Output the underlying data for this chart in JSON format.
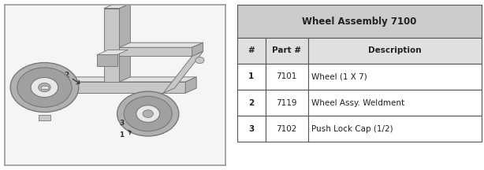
{
  "title": "Wheel Assembly 7100",
  "columns": [
    "#",
    "Part #",
    "Description"
  ],
  "rows": [
    [
      "1",
      "7101",
      "Wheel (1 X 7)"
    ],
    [
      "2",
      "7119",
      "Wheel Assy. Weldment"
    ],
    [
      "3",
      "7102",
      "Push Lock Cap (1/2)"
    ]
  ],
  "title_bg": "#cccccc",
  "header_bg": "#e0e0e0",
  "row_bg": "#ffffff",
  "border_color": "#555555",
  "text_color": "#222222",
  "title_fontsize": 8.5,
  "header_fontsize": 7.5,
  "cell_fontsize": 7.5,
  "bg_color": "#ffffff",
  "diagram_border_color": "#999999",
  "diagram_bg": "#f5f5f5"
}
